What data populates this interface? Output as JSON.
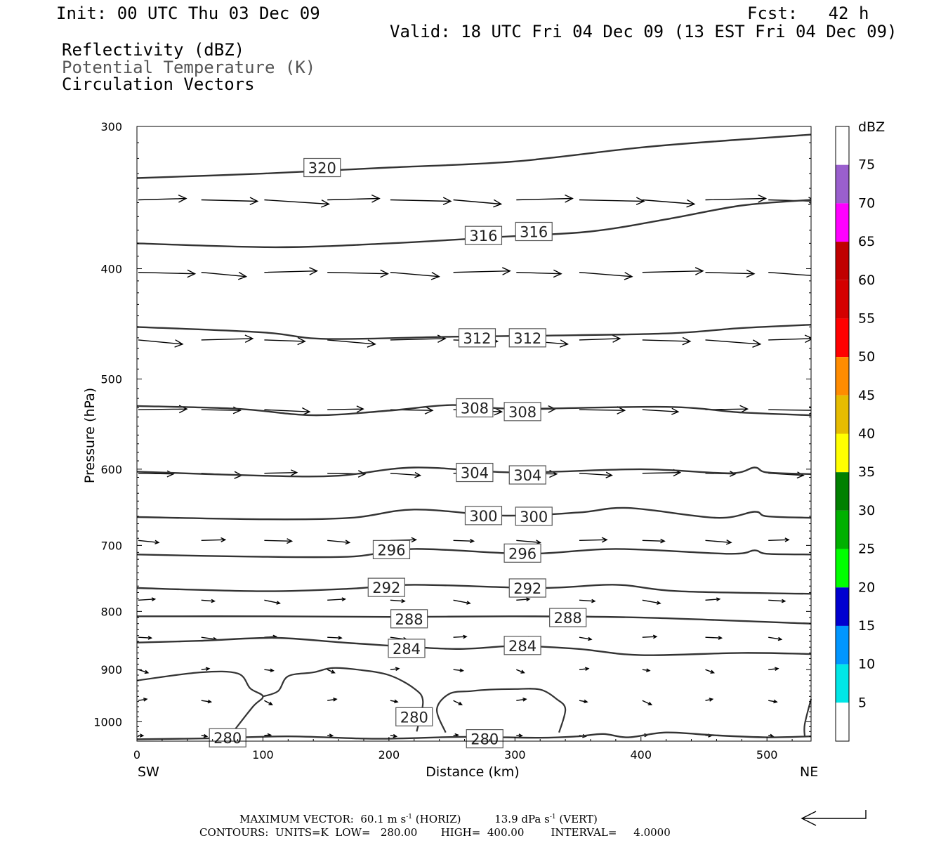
{
  "header": {
    "init": "Init: 00 UTC Thu 03 Dec 09",
    "fcst": "Fcst:   42 h",
    "valid": "Valid: 18 UTC Fri 04 Dec 09 (13 EST Fri 04 Dec 09)",
    "fields": [
      "Reflectivity (dBZ)",
      "Potential Temperature (K)",
      "Circulation Vectors"
    ]
  },
  "footer": {
    "maxvec": "MAXIMUM VECTOR:  60.1 m s",
    "maxvec_h": "(HORIZ)",
    "maxvec_v1": "13.9 dPa s",
    "maxvec_v2": "(VERT)",
    "exp": "-1",
    "contours": "CONTOURS:  UNITS=K  LOW=   280.00       HIGH=  400.00        INTERVAL=     4.0000"
  },
  "chart_data": {
    "type": "line",
    "title": "",
    "xlabel": "Distance (km)",
    "ylabel": "Pressure (hPa)",
    "xlim": [
      0,
      535
    ],
    "ylim": [
      1040,
      300
    ],
    "y_log_scale": true,
    "x_ticks": [
      0,
      100,
      200,
      300,
      400,
      500
    ],
    "y_ticks": [
      300,
      400,
      500,
      600,
      700,
      800,
      900,
      1000
    ],
    "x_end_labels": {
      "left": "SW",
      "right": "NE"
    },
    "colorbar": {
      "unit": "dBZ",
      "labels": [
        75,
        70,
        65,
        60,
        55,
        50,
        45,
        40,
        35,
        30,
        25,
        20,
        15,
        10,
        5
      ],
      "colors": [
        "#ffffff",
        "#9a5fce",
        "#ff00ff",
        "#c00000",
        "#d40000",
        "#ff0000",
        "#ff8c00",
        "#e6bc00",
        "#ffff00",
        "#008000",
        "#00b000",
        "#00ff00",
        "#0000d0",
        "#0096ff",
        "#00e6e6",
        "#ffffff"
      ]
    },
    "contours": [
      {
        "level": 320,
        "labels": [
          [
            147,
            326
          ]
        ],
        "points": [
          [
            0,
            333
          ],
          [
            100,
            330
          ],
          [
            200,
            326
          ],
          [
            300,
            322
          ],
          [
            400,
            313
          ],
          [
            480,
            308
          ],
          [
            535,
            305
          ]
        ]
      },
      {
        "level": 316,
        "labels": [
          [
            275,
            374
          ],
          [
            315,
            371
          ]
        ],
        "points": [
          [
            0,
            380
          ],
          [
            110,
            383
          ],
          [
            200,
            380
          ],
          [
            290,
            375
          ],
          [
            360,
            371
          ],
          [
            420,
            362
          ],
          [
            480,
            352
          ],
          [
            535,
            348
          ]
        ]
      },
      {
        "level": 312,
        "labels": [
          [
            270,
            460
          ],
          [
            310,
            460
          ]
        ],
        "points": [
          [
            0,
            450
          ],
          [
            100,
            455
          ],
          [
            150,
            461
          ],
          [
            250,
            459
          ],
          [
            320,
            458
          ],
          [
            420,
            456
          ],
          [
            480,
            451
          ],
          [
            535,
            448
          ]
        ]
      },
      {
        "level": 308,
        "labels": [
          [
            268,
            530
          ],
          [
            306,
            534
          ]
        ],
        "points": [
          [
            0,
            528
          ],
          [
            80,
            531
          ],
          [
            140,
            538
          ],
          [
            200,
            533
          ],
          [
            250,
            527
          ],
          [
            300,
            531
          ],
          [
            420,
            529
          ],
          [
            480,
            535
          ],
          [
            535,
            538
          ]
        ]
      },
      {
        "level": 304,
        "labels": [
          [
            268,
            604
          ],
          [
            310,
            607
          ]
        ],
        "points": [
          [
            0,
            603
          ],
          [
            100,
            608
          ],
          [
            160,
            608
          ],
          [
            220,
            598
          ],
          [
            300,
            604
          ],
          [
            400,
            600
          ],
          [
            470,
            605
          ],
          [
            490,
            598
          ],
          [
            500,
            604
          ],
          [
            535,
            606
          ]
        ]
      },
      {
        "level": 300,
        "labels": [
          [
            275,
            659
          ],
          [
            315,
            660
          ]
        ],
        "points": [
          [
            0,
            661
          ],
          [
            100,
            664
          ],
          [
            170,
            662
          ],
          [
            220,
            651
          ],
          [
            290,
            659
          ],
          [
            350,
            655
          ],
          [
            390,
            649
          ],
          [
            460,
            662
          ],
          [
            490,
            654
          ],
          [
            500,
            660
          ],
          [
            535,
            662
          ]
        ]
      },
      {
        "level": 296,
        "labels": [
          [
            202,
            706
          ],
          [
            306,
            711
          ]
        ],
        "points": [
          [
            0,
            713
          ],
          [
            90,
            716
          ],
          [
            170,
            716
          ],
          [
            220,
            705
          ],
          [
            310,
            712
          ],
          [
            380,
            705
          ],
          [
            470,
            712
          ],
          [
            490,
            707
          ],
          [
            500,
            712
          ],
          [
            535,
            713
          ]
        ]
      },
      {
        "level": 292,
        "labels": [
          [
            198,
            762
          ],
          [
            310,
            763
          ]
        ],
        "points": [
          [
            0,
            763
          ],
          [
            100,
            768
          ],
          [
            170,
            764
          ],
          [
            220,
            758
          ],
          [
            320,
            763
          ],
          [
            380,
            758
          ],
          [
            430,
            768
          ],
          [
            535,
            772
          ]
        ]
      },
      {
        "level": 288,
        "labels": [
          [
            216,
            812
          ],
          [
            342,
            810
          ]
        ],
        "points": [
          [
            0,
            808
          ],
          [
            100,
            808
          ],
          [
            200,
            809
          ],
          [
            300,
            808
          ],
          [
            400,
            810
          ],
          [
            535,
            820
          ]
        ]
      },
      {
        "level": 284,
        "labels": [
          [
            214,
            862
          ],
          [
            306,
            857
          ]
        ],
        "points": [
          [
            0,
            852
          ],
          [
            50,
            849
          ],
          [
            110,
            844
          ],
          [
            170,
            853
          ],
          [
            250,
            863
          ],
          [
            300,
            858
          ],
          [
            350,
            863
          ],
          [
            400,
            874
          ],
          [
            480,
            870
          ],
          [
            535,
            872
          ]
        ]
      },
      {
        "level": 280,
        "labels": [
          [
            220,
            990
          ],
          [
            72,
            1033
          ],
          [
            276,
            1035
          ]
        ],
        "points": [
          [
            0,
            1036
          ],
          [
            60,
            1034
          ],
          [
            120,
            1030
          ],
          [
            190,
            1035
          ],
          [
            260,
            1031
          ],
          [
            320,
            1033
          ],
          [
            350,
            1030
          ],
          [
            370,
            1025
          ],
          [
            390,
            1032
          ],
          [
            420,
            1022
          ],
          [
            460,
            1028
          ],
          [
            500,
            1032
          ],
          [
            535,
            1030
          ]
        ]
      }
    ]
  }
}
